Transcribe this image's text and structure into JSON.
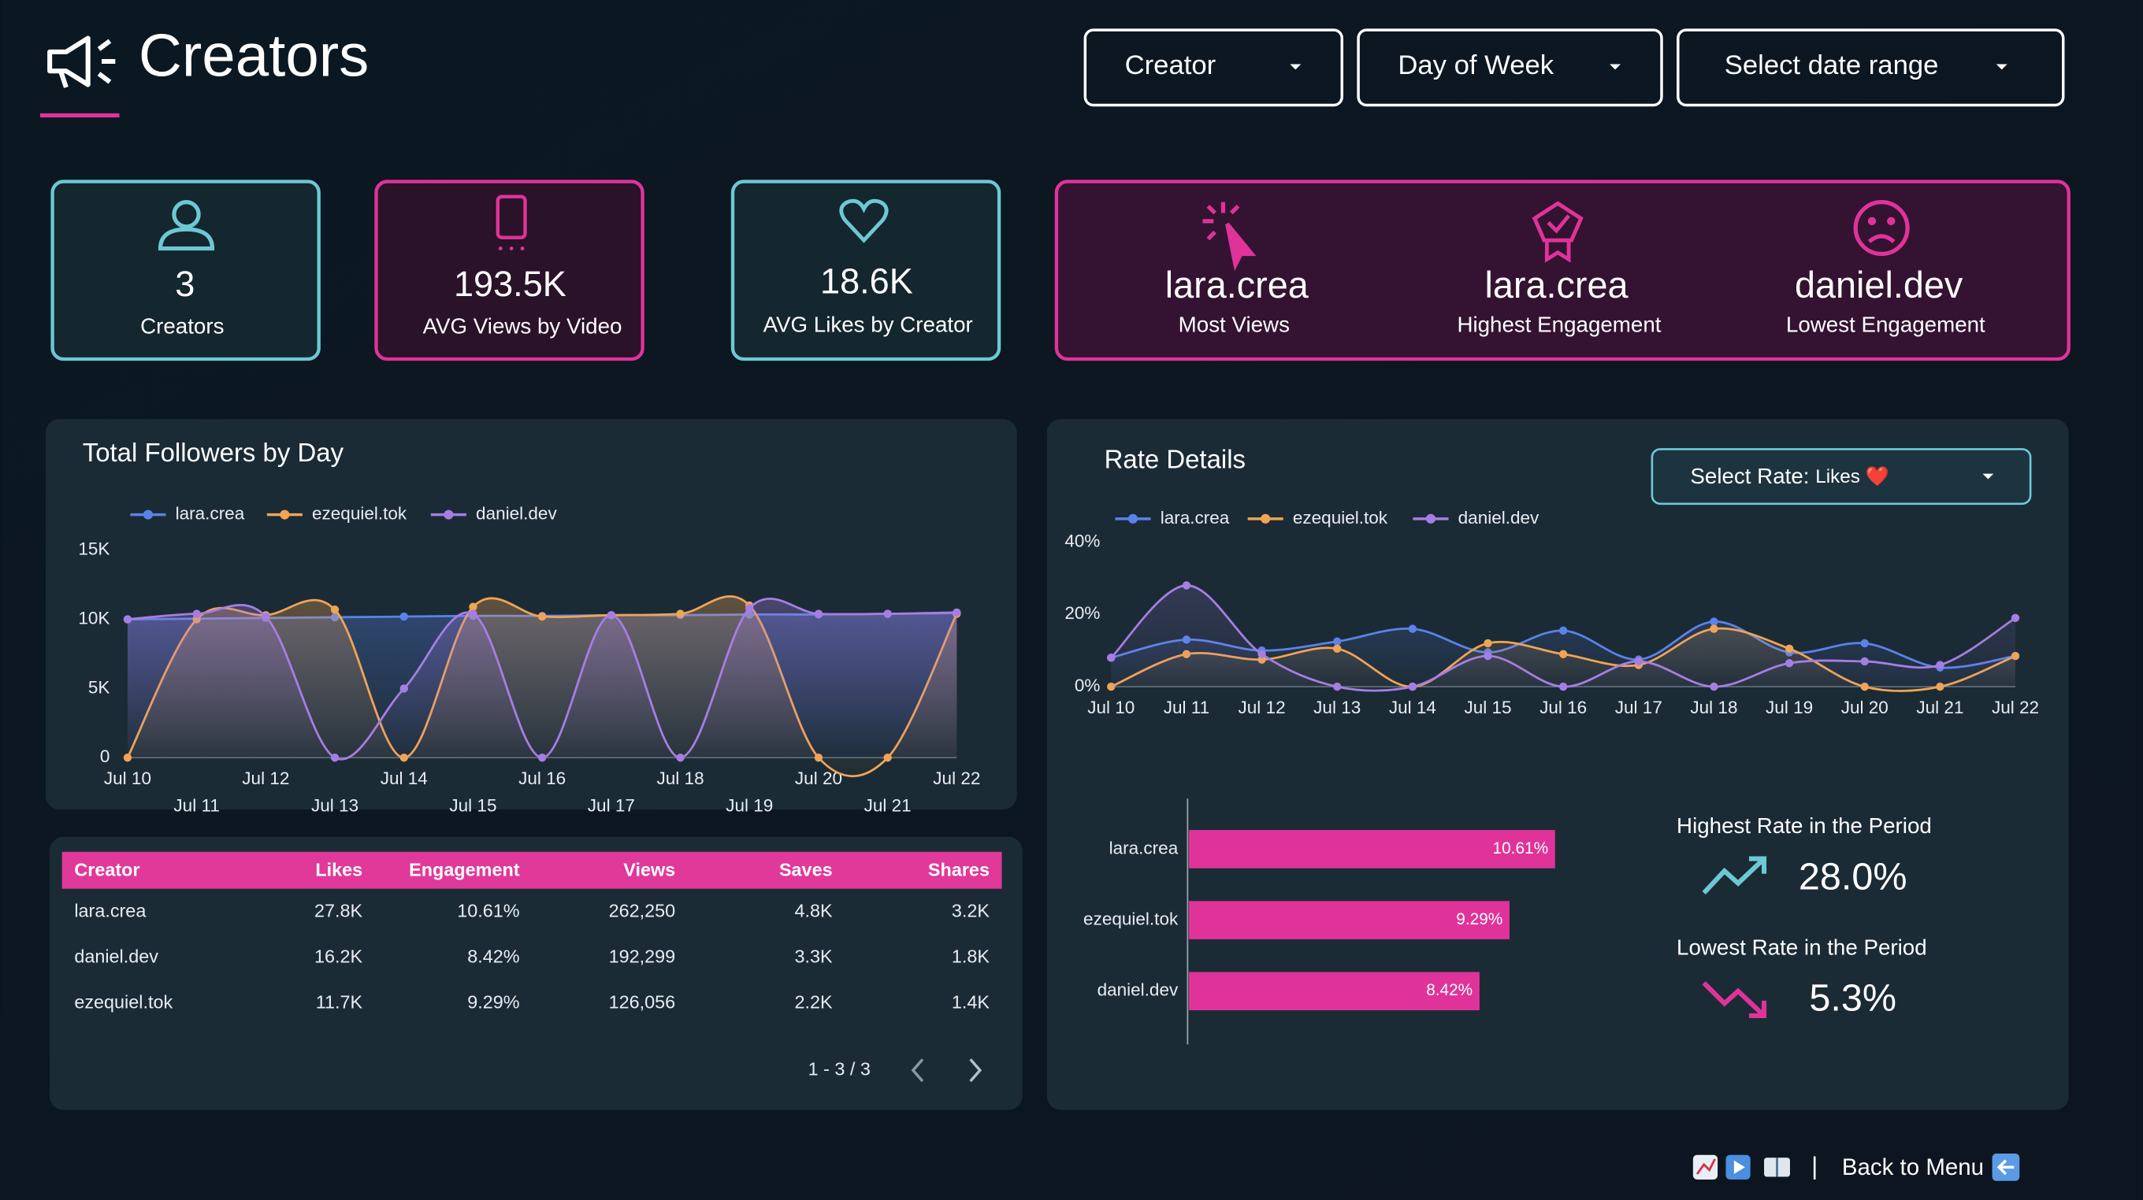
{
  "header": {
    "title": "Creators"
  },
  "filters": [
    "Creator",
    "Day of Week",
    "Select date range"
  ],
  "kpis": [
    {
      "value": "3",
      "label": "Creators"
    },
    {
      "value": "193.5K",
      "label": "AVG Views by Video"
    },
    {
      "value": "18.6K",
      "label": "AVG Likes by Creator"
    }
  ],
  "highlights": [
    {
      "value": "lara.crea",
      "label": "Most Views"
    },
    {
      "value": "lara.crea",
      "label": "Highest Engagement"
    },
    {
      "value": "daniel.dev",
      "label": "Lowest Engagement"
    }
  ],
  "chart_data": [
    {
      "type": "line",
      "title": "Total Followers by Day",
      "x": [
        "Jul 10",
        "Jul 11",
        "Jul 12",
        "Jul 13",
        "Jul 14",
        "Jul 15",
        "Jul 16",
        "Jul 17",
        "Jul 18",
        "Jul 19",
        "Jul 20",
        "Jul 21",
        "Jul 22"
      ],
      "series": [
        {
          "name": "lara.crea",
          "color": "#5b82ea",
          "values": [
            10000,
            10050,
            10100,
            10150,
            10200,
            10250,
            10250,
            10300,
            10300,
            10350,
            10350,
            10400,
            10450
          ]
        },
        {
          "name": "ezequiel.tok",
          "color": "#f0a455",
          "values": [
            0,
            10000,
            10300,
            10700,
            0,
            10900,
            10200,
            10300,
            10400,
            11000,
            0,
            0,
            10400
          ]
        },
        {
          "name": "daniel.dev",
          "color": "#a67ee3",
          "values": [
            10000,
            10400,
            10200,
            0,
            5000,
            10400,
            0,
            10300,
            0,
            10800,
            10400,
            10400,
            10500
          ]
        }
      ],
      "ylim": [
        0,
        15000
      ],
      "yticks": [
        0,
        {
          "value": 5000,
          "label": "5K"
        },
        {
          "value": 10000,
          "label": "10K"
        },
        {
          "value": 15000,
          "label": "15K"
        }
      ],
      "grid": false
    },
    {
      "type": "line",
      "title": "Rate Details",
      "x": [
        "Jul 10",
        "Jul 11",
        "Jul 12",
        "Jul 13",
        "Jul 14",
        "Jul 15",
        "Jul 16",
        "Jul 17",
        "Jul 18",
        "Jul 19",
        "Jul 20",
        "Jul 21",
        "Jul 22"
      ],
      "series": [
        {
          "name": "lara.crea",
          "color": "#5b82ea",
          "values": [
            8,
            13,
            10,
            12.5,
            16,
            9.5,
            15.5,
            7.5,
            18,
            9.5,
            12,
            5.3,
            8.5
          ]
        },
        {
          "name": "ezequiel.tok",
          "color": "#f0a455",
          "values": [
            0,
            9,
            7.5,
            10.5,
            0,
            12,
            9,
            6,
            16,
            10.5,
            0,
            0,
            8.5
          ]
        },
        {
          "name": "daniel.dev",
          "color": "#a67ee3",
          "values": [
            8,
            28,
            9,
            0,
            0,
            8.5,
            0,
            7,
            0,
            6.5,
            7,
            6,
            19
          ]
        }
      ],
      "ylim": [
        0,
        40
      ],
      "yticks": [
        {
          "value": 0,
          "label": "0%"
        },
        {
          "value": 20,
          "label": "20%"
        },
        {
          "value": 40,
          "label": "40%"
        }
      ],
      "grid": false
    },
    {
      "type": "bar",
      "orientation": "horizontal",
      "categories": [
        "lara.crea",
        "ezequiel.tok",
        "daniel.dev"
      ],
      "values": [
        10.61,
        9.29,
        8.42
      ],
      "value_labels": [
        "10.61%",
        "9.29%",
        "8.42%"
      ],
      "color": "#e0339a"
    }
  ],
  "rate_selector": {
    "label": "Select Rate:",
    "value": "Likes ❤️"
  },
  "table": {
    "columns": [
      "Creator",
      "Likes",
      "Engagement",
      "Views",
      "Saves",
      "Shares"
    ],
    "rows": [
      [
        "lara.crea",
        "27.8K",
        "10.61%",
        "262,250",
        "4.8K",
        "3.2K"
      ],
      [
        "daniel.dev",
        "16.2K",
        "8.42%",
        "192,299",
        "3.3K",
        "1.8K"
      ],
      [
        "ezequiel.tok",
        "11.7K",
        "9.29%",
        "126,056",
        "2.2K",
        "1.4K"
      ]
    ],
    "pagination": "1 - 3 / 3"
  },
  "rate_summary": {
    "highest_label": "Highest Rate in the Period",
    "highest": "28.0%",
    "lowest_label": "Lowest Rate in the Period",
    "lowest": "5.3%"
  },
  "footer": {
    "back": "Back to Menu"
  }
}
